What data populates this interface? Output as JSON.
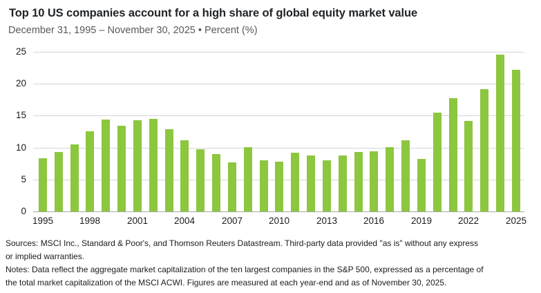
{
  "header": {
    "title": "Top 10 US companies account for a high share of global equity market value",
    "subtitle": "December 31, 1995 – November 30, 2025 • Percent (%)"
  },
  "chart_data": {
    "type": "bar",
    "title": "Top 10 US companies account for a high share of global equity market value",
    "subtitle": "December 31, 1995 – November 30, 2025 • Percent (%)",
    "xlabel": "",
    "ylabel": "Percent (%)",
    "x": [
      1995,
      1996,
      1997,
      1998,
      1999,
      2000,
      2001,
      2002,
      2003,
      2004,
      2005,
      2006,
      2007,
      2008,
      2009,
      2010,
      2011,
      2012,
      2013,
      2014,
      2015,
      2016,
      2017,
      2018,
      2019,
      2020,
      2021,
      2022,
      2023,
      2024,
      2025
    ],
    "values": [
      8.3,
      9.3,
      10.5,
      12.6,
      14.4,
      13.4,
      14.3,
      14.5,
      12.9,
      11.2,
      9.7,
      9.0,
      7.7,
      10.1,
      8.0,
      7.8,
      9.2,
      8.8,
      8.0,
      8.8,
      9.3,
      9.4,
      10.1,
      11.1,
      8.2,
      15.5,
      17.8,
      14.2,
      19.2,
      24.6,
      22.2
    ],
    "ylim": [
      0,
      25
    ],
    "yticks": [
      0,
      5,
      10,
      15,
      20,
      25
    ],
    "xticks": [
      1995,
      1998,
      2001,
      2004,
      2007,
      2010,
      2013,
      2016,
      2019,
      2022,
      2025
    ],
    "grid": "horizontal",
    "legend": "none",
    "bar_color": "#8dc63f",
    "gridline_color": "#d6d6d6",
    "baseline_color": "#a6a6a6"
  },
  "footer": {
    "lines": [
      "Sources: MSCI Inc., Standard & Poor's, and Thomson Reuters Datastream. Third-party data provided \"as is\" without any express",
      "or implied warranties.",
      "Notes: Data reflect the aggregate market capitalization of the ten largest companies in the S&P 500, expressed as a percentage of",
      "the total market capitalization of the MSCI ACWI. Figures are measured at each year-end and as of November 30, 2025."
    ]
  },
  "colors": {
    "title_text": "#212427",
    "subtitle_text": "#595959",
    "axis_text": "#1c1c1c",
    "background": "#ffffff"
  }
}
